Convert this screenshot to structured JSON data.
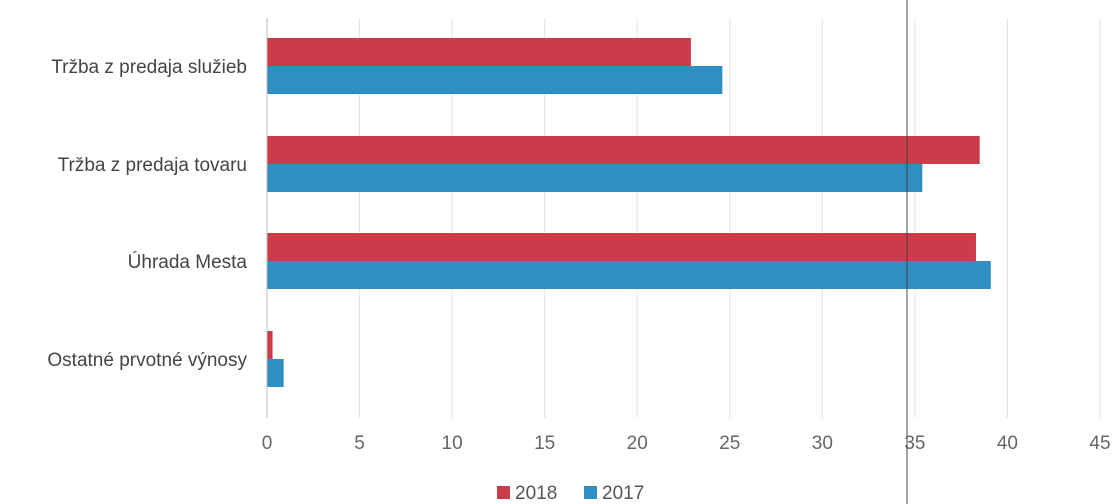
{
  "chart_data": {
    "type": "bar",
    "orientation": "horizontal",
    "categories": [
      "Tržba z predaja služieb",
      "Tržba z predaja tovaru",
      "Úhrada Mesta",
      "Ostatné prvotné výnosy"
    ],
    "series": [
      {
        "name": "2018",
        "color": "#cc3b4a",
        "values": [
          22.9,
          38.5,
          38.3,
          0.3
        ]
      },
      {
        "name": "2017",
        "color": "#2f8fc0",
        "values": [
          24.6,
          35.4,
          39.1,
          0.9
        ]
      }
    ],
    "xlim": [
      0,
      45
    ],
    "xticks": [
      "0",
      "5",
      "10",
      "15",
      "20",
      "25",
      "30",
      "35",
      "40",
      "45"
    ],
    "grid": true,
    "legend_position": "bottom-center"
  }
}
